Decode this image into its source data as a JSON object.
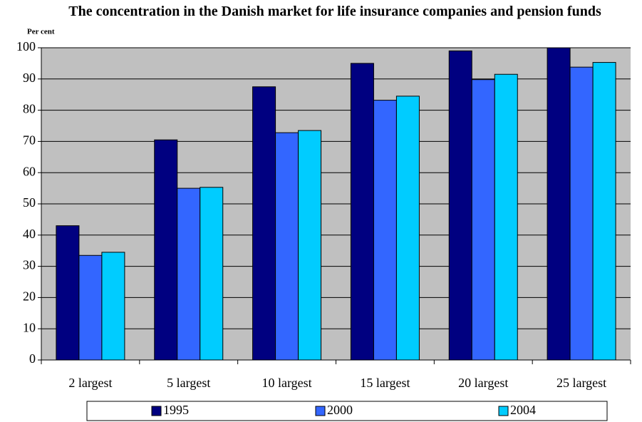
{
  "chart_data": {
    "type": "bar",
    "title": "The concentration in the Danish market for life insurance companies and pension funds",
    "y_label": "Per cent",
    "categories": [
      "2 largest",
      "5 largest",
      "10 largest",
      "15 largest",
      "20 largest",
      "25 largest"
    ],
    "series": [
      {
        "name": "1995",
        "color": "#000080",
        "values": [
          43,
          70.5,
          87.5,
          95,
          99,
          100
        ]
      },
      {
        "name": "2000",
        "color": "#3366ff",
        "values": [
          33.5,
          55,
          72.8,
          83.2,
          89.8,
          93.8
        ]
      },
      {
        "name": "2004",
        "color": "#00ccff",
        "values": [
          34.5,
          55.3,
          73.5,
          84.5,
          91.5,
          95.3
        ]
      }
    ],
    "ylim": [
      0,
      100
    ],
    "yticks": [
      0,
      10,
      20,
      30,
      40,
      50,
      60,
      70,
      80,
      90,
      100
    ],
    "grid": true,
    "legend": "bottom"
  }
}
